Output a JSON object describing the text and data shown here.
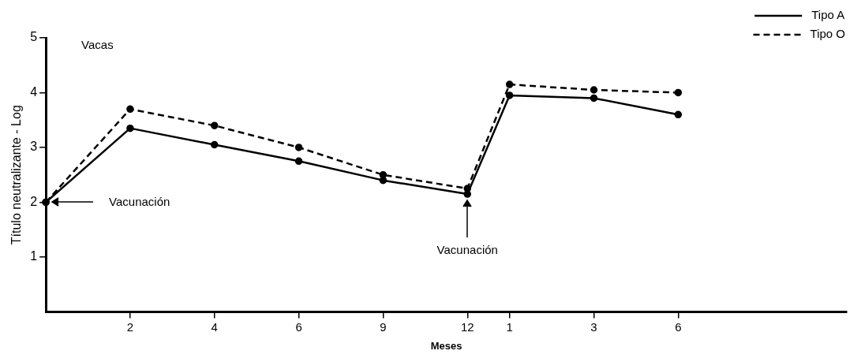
{
  "chart_data": {
    "type": "line",
    "xlabel": "Meses",
    "ylabel": "Título neutralizante - Log",
    "categories": [
      null,
      null,
      "2",
      null,
      "4",
      null,
      "6",
      null,
      "9",
      null,
      "12",
      "1",
      null,
      "3",
      null,
      "6",
      null,
      null,
      null,
      null
    ],
    "series": [
      {
        "name": "Tipo A",
        "color": "#000000",
        "line_style": "solid",
        "values": [
          2,
          null,
          3.35,
          null,
          3.05,
          null,
          2.75,
          null,
          2.4,
          null,
          2.15,
          3.95,
          null,
          3.9,
          null,
          3.6,
          null,
          null,
          null,
          null
        ]
      },
      {
        "name": "Tipo O",
        "color": "#000000",
        "line_style": "dashed",
        "values": [
          2,
          null,
          3.7,
          null,
          3.4,
          null,
          3.0,
          null,
          2.5,
          null,
          2.25,
          4.15,
          null,
          4.05,
          null,
          4.0,
          null,
          null,
          null,
          null
        ]
      }
    ],
    "ylim": [
      0,
      5
    ],
    "yticks": [
      1,
      2,
      3,
      4,
      5
    ],
    "grid": false,
    "legend": "top right",
    "marker": "circle",
    "annotations": [
      "Vacas",
      "Vacunación",
      {
        "text": "Vacunación",
        "x": "12",
        "y": 2.15
      }
    ]
  }
}
